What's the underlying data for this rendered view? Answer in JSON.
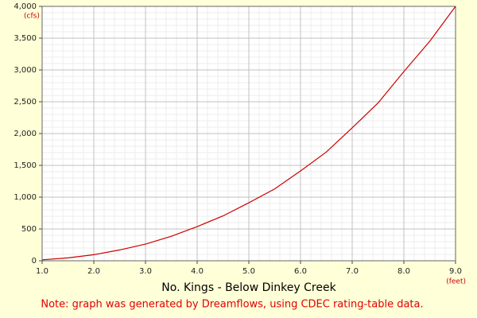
{
  "chart_data": {
    "type": "line",
    "title": "No. Kings - Below Dinkey Creek",
    "note": "Note: graph was generated by Dreamflows, using CDEC rating-table data.",
    "y_unit": "(cfs)",
    "x_unit": "(feet)",
    "x": [
      1.0,
      1.5,
      2.0,
      2.5,
      3.0,
      3.5,
      4.0,
      4.5,
      5.0,
      5.5,
      6.0,
      6.5,
      7.0,
      7.5,
      8.0,
      8.5,
      9.0
    ],
    "series": [
      {
        "color": "#cc0000",
        "values": [
          15,
          45,
          95,
          170,
          262,
          385,
          537,
          705,
          912,
          1130,
          1412,
          1710,
          2090,
          2480,
          2975,
          3450,
          4000
        ]
      }
    ],
    "xlim": [
      1.0,
      9.0
    ],
    "xticks": [
      {
        "value": 1,
        "label": "1.0"
      },
      {
        "value": 2,
        "label": "2.0"
      },
      {
        "value": 3,
        "label": "3.0"
      },
      {
        "value": 4,
        "label": "4.0"
      },
      {
        "value": 5,
        "label": "5.0"
      },
      {
        "value": 6,
        "label": "6.0"
      },
      {
        "value": 7,
        "label": "7.0"
      },
      {
        "value": 8,
        "label": "8.0"
      },
      {
        "value": 9,
        "label": "9.0"
      }
    ],
    "ylim": [
      0,
      4000
    ],
    "yticks": [
      0,
      500,
      {
        "value": 1000,
        "label": "1,000"
      },
      {
        "value": 1500,
        "label": "1,500"
      },
      {
        "value": 2000,
        "label": "2,000"
      },
      {
        "value": 2500,
        "label": "2,500"
      },
      {
        "value": 3000,
        "label": "3,000"
      },
      {
        "value": 3500,
        "label": "3,500"
      },
      {
        "value": 4000,
        "label": "4,000"
      }
    ],
    "grid": true
  }
}
